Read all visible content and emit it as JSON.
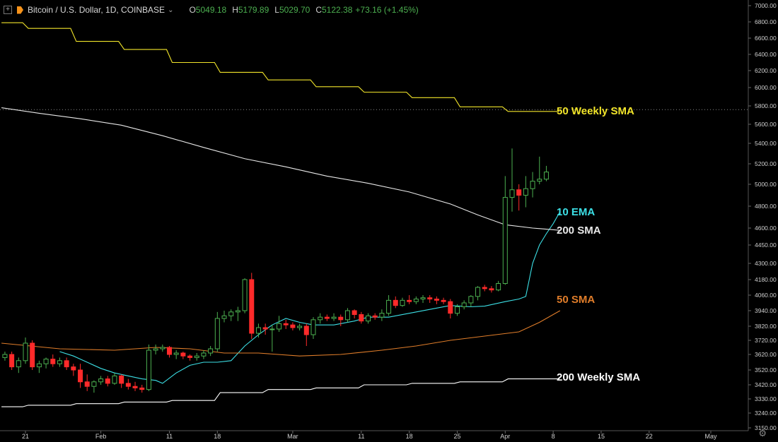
{
  "header": {
    "title": "Bitcoin / U.S. Dollar, 1D, COINBASE",
    "open_key": "O",
    "open": "5049.18",
    "high_key": "H",
    "high": "5179.89",
    "low_key": "L",
    "low": "5029.70",
    "close_key": "C",
    "close": "5122.38",
    "change": "+73.16 (+1.45%)"
  },
  "icons": {
    "expand": "expand-icon",
    "logo": "bitcoin-logo-icon",
    "dropdown": "chevron-down-icon",
    "settings": "gear-icon"
  },
  "colors": {
    "up": "#4caf50",
    "down": "#ff2a2a",
    "ema10": "#3ce0e6",
    "sma50": "#e07d2a",
    "sma200": "#e8e8e8",
    "wsma50": "#f2e52a",
    "wsma200": "#ffffff"
  },
  "chart_data": {
    "type": "candlestick",
    "ylim": [
      3150,
      7000
    ],
    "y_ticks": [
      7000,
      6800,
      6600,
      6400,
      6200,
      6000,
      5800,
      5600,
      5400,
      5200,
      5000,
      4800,
      4600,
      4450,
      4300,
      4180,
      4060,
      3940,
      3820,
      3720,
      3620,
      3520,
      3420,
      3330,
      3240,
      3150
    ],
    "y_tick_labels": [
      "7000.00",
      "6800.00",
      "6600.00",
      "6400.00",
      "6200.00",
      "6000.00",
      "5800.00",
      "5600.00",
      "5400.00",
      "5200.00",
      "5000.00",
      "4800.00",
      "4600.00",
      "4450.00",
      "4300.00",
      "4180.00",
      "4060.00",
      "3940.00",
      "3820.00",
      "3720.00",
      "3620.00",
      "3520.00",
      "3420.00",
      "3330.00",
      "3240.00",
      "3150.00"
    ],
    "x_ticks": [
      {
        "label": "21",
        "day": 0
      },
      {
        "label": "Feb",
        "day": 11
      },
      {
        "label": "11",
        "day": 21
      },
      {
        "label": "18",
        "day": 28
      },
      {
        "label": "Mar",
        "day": 39
      },
      {
        "label": "11",
        "day": 49
      },
      {
        "label": "18",
        "day": 56
      },
      {
        "label": "25",
        "day": 63
      },
      {
        "label": "Apr",
        "day": 70
      },
      {
        "label": "8",
        "day": 77
      },
      {
        "label": "15",
        "day": 84
      },
      {
        "label": "22",
        "day": 91
      },
      {
        "label": "May",
        "day": 100
      }
    ],
    "x_domain_days": [
      -3.5,
      102.8
    ],
    "candles": [
      [
        3600,
        3640,
        3580,
        3620
      ],
      [
        3620,
        3640,
        3520,
        3540
      ],
      [
        3540,
        3600,
        3500,
        3580
      ],
      [
        3580,
        3740,
        3560,
        3700
      ],
      [
        3700,
        3720,
        3520,
        3540
      ],
      [
        3540,
        3580,
        3500,
        3560
      ],
      [
        3560,
        3600,
        3530,
        3590
      ],
      [
        3590,
        3620,
        3540,
        3560
      ],
      [
        3560,
        3600,
        3540,
        3580
      ],
      [
        3580,
        3600,
        3520,
        3540
      ],
      [
        3540,
        3560,
        3480,
        3520
      ],
      [
        3520,
        3560,
        3400,
        3440
      ],
      [
        3440,
        3490,
        3380,
        3410
      ],
      [
        3410,
        3450,
        3370,
        3440
      ],
      [
        3440,
        3480,
        3420,
        3460
      ],
      [
        3460,
        3480,
        3410,
        3430
      ],
      [
        3430,
        3500,
        3420,
        3480
      ],
      [
        3480,
        3490,
        3400,
        3430
      ],
      [
        3430,
        3460,
        3390,
        3410
      ],
      [
        3410,
        3440,
        3380,
        3400
      ],
      [
        3400,
        3420,
        3370,
        3390
      ],
      [
        3390,
        3690,
        3380,
        3650
      ],
      [
        3650,
        3690,
        3620,
        3660
      ],
      [
        3660,
        3690,
        3640,
        3670
      ],
      [
        3670,
        3680,
        3600,
        3620
      ],
      [
        3620,
        3650,
        3590,
        3630
      ],
      [
        3630,
        3640,
        3590,
        3610
      ],
      [
        3610,
        3620,
        3580,
        3600
      ],
      [
        3600,
        3630,
        3580,
        3610
      ],
      [
        3610,
        3650,
        3590,
        3630
      ],
      [
        3630,
        3680,
        3610,
        3660
      ],
      [
        3660,
        3930,
        3640,
        3880
      ],
      [
        3880,
        3940,
        3850,
        3900
      ],
      [
        3900,
        3950,
        3860,
        3930
      ],
      [
        3930,
        3970,
        3860,
        3940
      ],
      [
        3940,
        4190,
        3920,
        4180
      ],
      [
        4180,
        4230,
        3730,
        3770
      ],
      [
        3770,
        3840,
        3740,
        3810
      ],
      [
        3810,
        3840,
        3760,
        3800
      ],
      [
        3800,
        3830,
        3640,
        3800
      ],
      [
        3800,
        3900,
        3780,
        3840
      ],
      [
        3840,
        3870,
        3800,
        3830
      ],
      [
        3830,
        3850,
        3790,
        3810
      ],
      [
        3810,
        3840,
        3790,
        3820
      ],
      [
        3820,
        3840,
        3680,
        3760
      ],
      [
        3760,
        3890,
        3730,
        3870
      ],
      [
        3870,
        3920,
        3840,
        3890
      ],
      [
        3890,
        3910,
        3860,
        3880
      ],
      [
        3880,
        3920,
        3860,
        3890
      ],
      [
        3890,
        3910,
        3820,
        3870
      ],
      [
        3870,
        3960,
        3850,
        3940
      ],
      [
        3940,
        3950,
        3880,
        3910
      ],
      [
        3910,
        3930,
        3840,
        3860
      ],
      [
        3860,
        3920,
        3840,
        3900
      ],
      [
        3900,
        3920,
        3870,
        3890
      ],
      [
        3890,
        3950,
        3860,
        3920
      ],
      [
        3920,
        4060,
        3900,
        4020
      ],
      [
        4020,
        4050,
        3960,
        3980
      ],
      [
        3980,
        4040,
        3970,
        4020
      ],
      [
        4020,
        4060,
        3990,
        4010
      ],
      [
        4010,
        4050,
        3990,
        4030
      ],
      [
        4030,
        4060,
        4000,
        4040
      ],
      [
        4040,
        4060,
        4000,
        4030
      ],
      [
        4030,
        4050,
        3990,
        4020
      ],
      [
        4020,
        4040,
        3990,
        4010
      ],
      [
        4010,
        4030,
        3880,
        3920
      ],
      [
        3920,
        3990,
        3900,
        3970
      ],
      [
        3970,
        4020,
        3950,
        4000
      ],
      [
        4000,
        4060,
        3970,
        4050
      ],
      [
        4050,
        4130,
        4020,
        4120
      ],
      [
        4120,
        4140,
        4090,
        4110
      ],
      [
        4110,
        4130,
        4080,
        4100
      ],
      [
        4100,
        4170,
        4090,
        4150
      ],
      [
        4150,
        5080,
        4140,
        4880
      ],
      [
        4880,
        5350,
        4750,
        4950
      ],
      [
        4950,
        5000,
        4760,
        4900
      ],
      [
        4900,
        5080,
        4790,
        4960
      ],
      [
        4960,
        5120,
        4880,
        5030
      ],
      [
        5030,
        5270,
        5000,
        5050
      ],
      [
        5050,
        5180,
        5030,
        5120
      ]
    ],
    "series": [
      {
        "name": "10 EMA",
        "points": [
          [
            5,
            3640
          ],
          [
            7,
            3610
          ],
          [
            9,
            3570
          ],
          [
            11,
            3530
          ],
          [
            13,
            3500
          ],
          [
            15,
            3480
          ],
          [
            17,
            3460
          ],
          [
            19,
            3450
          ],
          [
            20,
            3430
          ],
          [
            22,
            3500
          ],
          [
            24,
            3550
          ],
          [
            26,
            3570
          ],
          [
            28,
            3570
          ],
          [
            30,
            3580
          ],
          [
            32,
            3680
          ],
          [
            34,
            3760
          ],
          [
            36,
            3830
          ],
          [
            38,
            3880
          ],
          [
            40,
            3850
          ],
          [
            42,
            3830
          ],
          [
            45,
            3830
          ],
          [
            48,
            3860
          ],
          [
            50,
            3890
          ],
          [
            53,
            3890
          ],
          [
            56,
            3920
          ],
          [
            59,
            3950
          ],
          [
            62,
            3980
          ],
          [
            65,
            3970
          ],
          [
            67,
            3975
          ],
          [
            70,
            4010
          ],
          [
            72,
            4030
          ],
          [
            73,
            4050
          ],
          [
            74,
            4300
          ],
          [
            75,
            4450
          ],
          [
            76,
            4550
          ],
          [
            77,
            4640
          ],
          [
            78,
            4750
          ]
        ]
      },
      {
        "name": "200 SMA",
        "points": [
          [
            -3.5,
            5780
          ],
          [
            2,
            5720
          ],
          [
            8,
            5660
          ],
          [
            14,
            5590
          ],
          [
            20,
            5480
          ],
          [
            26,
            5360
          ],
          [
            32,
            5250
          ],
          [
            38,
            5170
          ],
          [
            44,
            5080
          ],
          [
            50,
            5010
          ],
          [
            56,
            4930
          ],
          [
            62,
            4820
          ],
          [
            66,
            4720
          ],
          [
            70,
            4630
          ],
          [
            74,
            4600
          ],
          [
            78,
            4580
          ]
        ]
      },
      {
        "name": "50 SMA",
        "points": [
          [
            -3.5,
            3700
          ],
          [
            5,
            3660
          ],
          [
            13,
            3650
          ],
          [
            19,
            3670
          ],
          [
            24,
            3660
          ],
          [
            29,
            3630
          ],
          [
            34,
            3630
          ],
          [
            40,
            3610
          ],
          [
            46,
            3620
          ],
          [
            52,
            3650
          ],
          [
            57,
            3680
          ],
          [
            62,
            3720
          ],
          [
            67,
            3750
          ],
          [
            72,
            3780
          ],
          [
            75,
            3850
          ],
          [
            78,
            3940
          ]
        ]
      },
      {
        "name": "50 Weekly SMA",
        "steps": [
          [
            -3.5,
            6790
          ],
          [
            0,
            6720
          ],
          [
            7,
            6560
          ],
          [
            14,
            6460
          ],
          [
            21,
            6300
          ],
          [
            28,
            6180
          ],
          [
            35,
            6090
          ],
          [
            42,
            6010
          ],
          [
            49,
            5950
          ],
          [
            56,
            5890
          ],
          [
            63,
            5790
          ],
          [
            70,
            5740
          ],
          [
            77.5,
            5740
          ]
        ]
      },
      {
        "name": "200 Weekly SMA",
        "steps": [
          [
            -3.5,
            3280
          ],
          [
            0,
            3290
          ],
          [
            7,
            3300
          ],
          [
            14,
            3310
          ],
          [
            21,
            3320
          ],
          [
            28,
            3370
          ],
          [
            35,
            3390
          ],
          [
            42,
            3400
          ],
          [
            49,
            3420
          ],
          [
            56,
            3430
          ],
          [
            63,
            3440
          ],
          [
            70,
            3460
          ],
          [
            77.5,
            3460
          ]
        ]
      }
    ],
    "labels": [
      {
        "text": "50 Weekly SMA",
        "color": "wsma50"
      },
      {
        "text": "10 EMA",
        "color": "ema10"
      },
      {
        "text": "200 SMA",
        "color": "sma200"
      },
      {
        "text": "50 SMA",
        "color": "sma50"
      },
      {
        "text": "200 Weekly SMA",
        "color": "wsma200"
      }
    ],
    "dotted_level": 5760
  }
}
